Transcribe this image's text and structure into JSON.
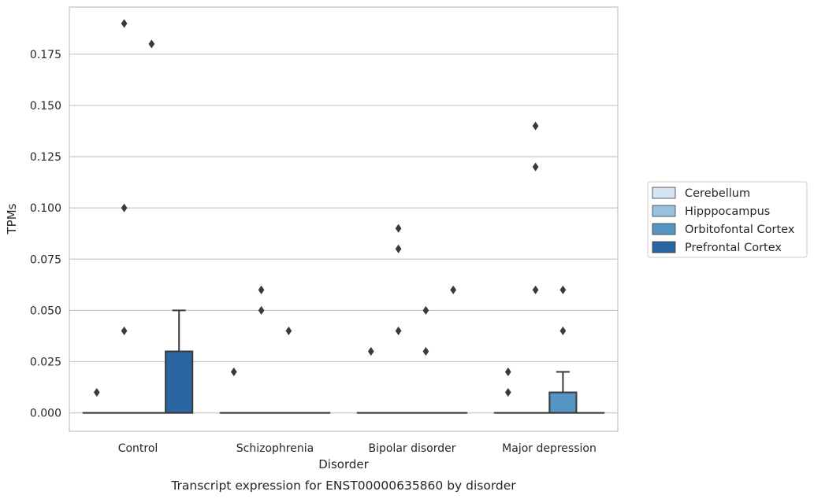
{
  "caption": "Transcript expression for ENST00000635860 by disorder",
  "chart_data": {
    "type": "box",
    "xlabel": "Disorder",
    "ylabel": "TPMs",
    "categories": [
      "Control",
      "Schizophrenia",
      "Bipolar disorder",
      "Major depression"
    ],
    "ylim": [
      -0.009,
      0.198
    ],
    "yticks": [
      0.0,
      0.025,
      0.05,
      0.075,
      0.1,
      0.125,
      0.15,
      0.175
    ],
    "ytick_labels": [
      "0.000",
      "0.025",
      "0.050",
      "0.075",
      "0.100",
      "0.125",
      "0.150",
      "0.175"
    ],
    "grid": "horizontal",
    "legend_placement": "right",
    "hues": [
      {
        "name": "Cerebellum",
        "color": "#d4e4f2"
      },
      {
        "name": "Hipppocampus",
        "color": "#98c1dd"
      },
      {
        "name": "Orbitofontal Cortex",
        "color": "#5694c3"
      },
      {
        "name": "Prefrontal Cortex",
        "color": "#2a66a1"
      }
    ],
    "boxes": [
      {
        "category": "Control",
        "hue": "Cerebellum",
        "q1": 0,
        "median": 0,
        "q3": 0,
        "whisker_low": 0,
        "whisker_high": 0,
        "outliers": [
          0.01
        ]
      },
      {
        "category": "Control",
        "hue": "Hipppocampus",
        "q1": 0,
        "median": 0,
        "q3": 0,
        "whisker_low": 0,
        "whisker_high": 0,
        "outliers": [
          0.04,
          0.1,
          0.19
        ]
      },
      {
        "category": "Control",
        "hue": "Orbitofontal Cortex",
        "q1": 0,
        "median": 0,
        "q3": 0,
        "whisker_low": 0,
        "whisker_high": 0,
        "outliers": [
          0.18
        ]
      },
      {
        "category": "Control",
        "hue": "Prefrontal Cortex",
        "q1": 0,
        "median": 0,
        "q3": 0.03,
        "whisker_low": 0,
        "whisker_high": 0.05,
        "outliers": []
      },
      {
        "category": "Schizophrenia",
        "hue": "Cerebellum",
        "q1": 0,
        "median": 0,
        "q3": 0,
        "whisker_low": 0,
        "whisker_high": 0,
        "outliers": [
          0.02
        ]
      },
      {
        "category": "Schizophrenia",
        "hue": "Hipppocampus",
        "q1": 0,
        "median": 0,
        "q3": 0,
        "whisker_low": 0,
        "whisker_high": 0,
        "outliers": [
          0.05,
          0.06
        ]
      },
      {
        "category": "Schizophrenia",
        "hue": "Orbitofontal Cortex",
        "q1": 0,
        "median": 0,
        "q3": 0,
        "whisker_low": 0,
        "whisker_high": 0,
        "outliers": [
          0.04
        ]
      },
      {
        "category": "Schizophrenia",
        "hue": "Prefrontal Cortex",
        "q1": 0,
        "median": 0,
        "q3": 0,
        "whisker_low": 0,
        "whisker_high": 0,
        "outliers": []
      },
      {
        "category": "Bipolar disorder",
        "hue": "Cerebellum",
        "q1": 0,
        "median": 0,
        "q3": 0,
        "whisker_low": 0,
        "whisker_high": 0,
        "outliers": [
          0.03
        ]
      },
      {
        "category": "Bipolar disorder",
        "hue": "Hipppocampus",
        "q1": 0,
        "median": 0,
        "q3": 0,
        "whisker_low": 0,
        "whisker_high": 0,
        "outliers": [
          0.04,
          0.08,
          0.09
        ]
      },
      {
        "category": "Bipolar disorder",
        "hue": "Orbitofontal Cortex",
        "q1": 0,
        "median": 0,
        "q3": 0,
        "whisker_low": 0,
        "whisker_high": 0,
        "outliers": [
          0.03,
          0.05
        ]
      },
      {
        "category": "Bipolar disorder",
        "hue": "Prefrontal Cortex",
        "q1": 0,
        "median": 0,
        "q3": 0,
        "whisker_low": 0,
        "whisker_high": 0,
        "outliers": [
          0.06
        ]
      },
      {
        "category": "Major depression",
        "hue": "Cerebellum",
        "q1": 0,
        "median": 0,
        "q3": 0,
        "whisker_low": 0,
        "whisker_high": 0,
        "outliers": [
          0.01,
          0.02
        ]
      },
      {
        "category": "Major depression",
        "hue": "Hipppocampus",
        "q1": 0,
        "median": 0,
        "q3": 0,
        "whisker_low": 0,
        "whisker_high": 0,
        "outliers": [
          0.06,
          0.12,
          0.14
        ]
      },
      {
        "category": "Major depression",
        "hue": "Orbitofontal Cortex",
        "q1": 0,
        "median": 0,
        "q3": 0.01,
        "whisker_low": 0,
        "whisker_high": 0.02,
        "outliers": [
          0.04,
          0.06
        ]
      },
      {
        "category": "Major depression",
        "hue": "Prefrontal Cortex",
        "q1": 0,
        "median": 0,
        "q3": 0,
        "whisker_low": 0,
        "whisker_high": 0,
        "outliers": []
      }
    ]
  }
}
